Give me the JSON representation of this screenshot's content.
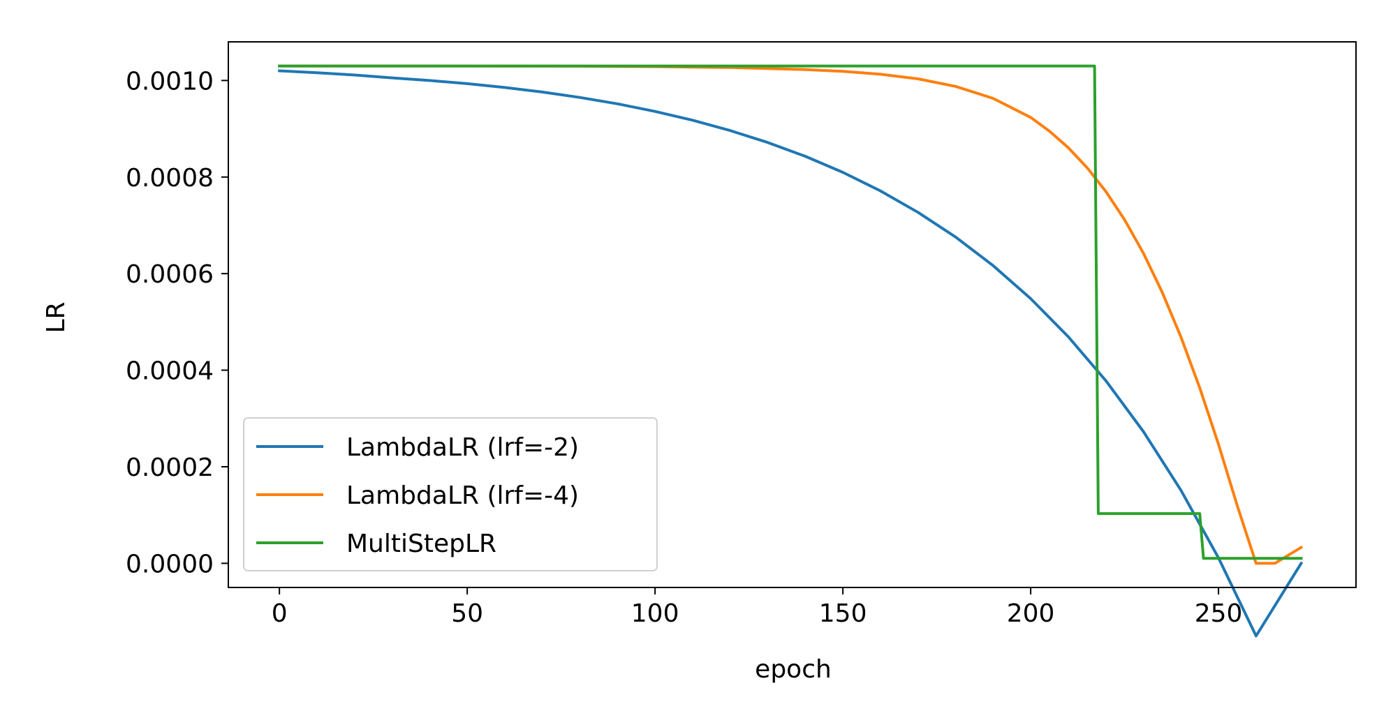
{
  "chart_data": {
    "type": "line",
    "title": "",
    "xlabel": "epoch",
    "ylabel": "LR",
    "xlim": [
      -13.6,
      286.6
    ],
    "ylim": [
      -5e-05,
      0.00108
    ],
    "xticks": [
      0,
      50,
      100,
      150,
      200,
      250
    ],
    "xtick_labels": [
      "0",
      "50",
      "100",
      "150",
      "200",
      "250"
    ],
    "yticks": [
      0.0,
      0.0002,
      0.0004,
      0.0006,
      0.0008,
      0.001
    ],
    "ytick_labels": [
      "0.0000",
      "0.0002",
      "0.0004",
      "0.0006",
      "0.0008",
      "0.0010"
    ],
    "grid": false,
    "legend_position": "lower-left",
    "series": [
      {
        "name": "LambdaLR (lrf=-2)",
        "color": "#1f77b4",
        "x": [
          0,
          10,
          20,
          30,
          40,
          50,
          60,
          70,
          80,
          90,
          100,
          110,
          120,
          130,
          140,
          150,
          160,
          170,
          180,
          190,
          200,
          210,
          220,
          230,
          240,
          250,
          260,
          272
        ],
        "y": [
          0.00102,
          0.0010162,
          0.0010114,
          0.0010054,
          0.001,
          0.0009934,
          0.0009855,
          0.0009761,
          0.0009649,
          0.0009517,
          0.000936,
          0.0009177,
          0.0008964,
          0.0008717,
          0.000843,
          0.0008098,
          0.0007714,
          0.000727,
          0.0006758,
          0.0006166,
          0.0005483,
          0.0004694,
          0.0003783,
          0.0002729,
          0.0001513,
          1.12e-05,
          -0.0001505,
          0.0
        ]
      },
      {
        "name": "LambdaLR (lrf=-4)",
        "color": "#ff7f0e",
        "x": [
          0,
          20,
          40,
          60,
          80,
          100,
          120,
          140,
          150,
          160,
          170,
          180,
          190,
          200,
          205,
          210,
          215,
          220,
          225,
          230,
          235,
          240,
          245,
          250,
          255,
          260,
          265,
          272
        ],
        "y": [
          0.00103,
          0.00103,
          0.00103,
          0.0010299,
          0.0010295,
          0.0010287,
          0.0010268,
          0.0010227,
          0.0010189,
          0.0010129,
          0.0010034,
          0.0009878,
          0.0009629,
          0.0009235,
          0.0008951,
          0.0008609,
          0.0008196,
          0.0007702,
          0.0007115,
          0.0006424,
          0.0005617,
          0.0004688,
          0.0003634,
          0.0002464,
          0.0001192,
          0.0,
          0.0,
          3.3e-05
        ]
      },
      {
        "name": "MultiStepLR",
        "color": "#2ca02c",
        "x": [
          0,
          217,
          218,
          245,
          246,
          272
        ],
        "y": [
          0.00103,
          0.00103,
          0.000103,
          0.000103,
          1.03e-05,
          1.03e-05
        ]
      }
    ]
  }
}
